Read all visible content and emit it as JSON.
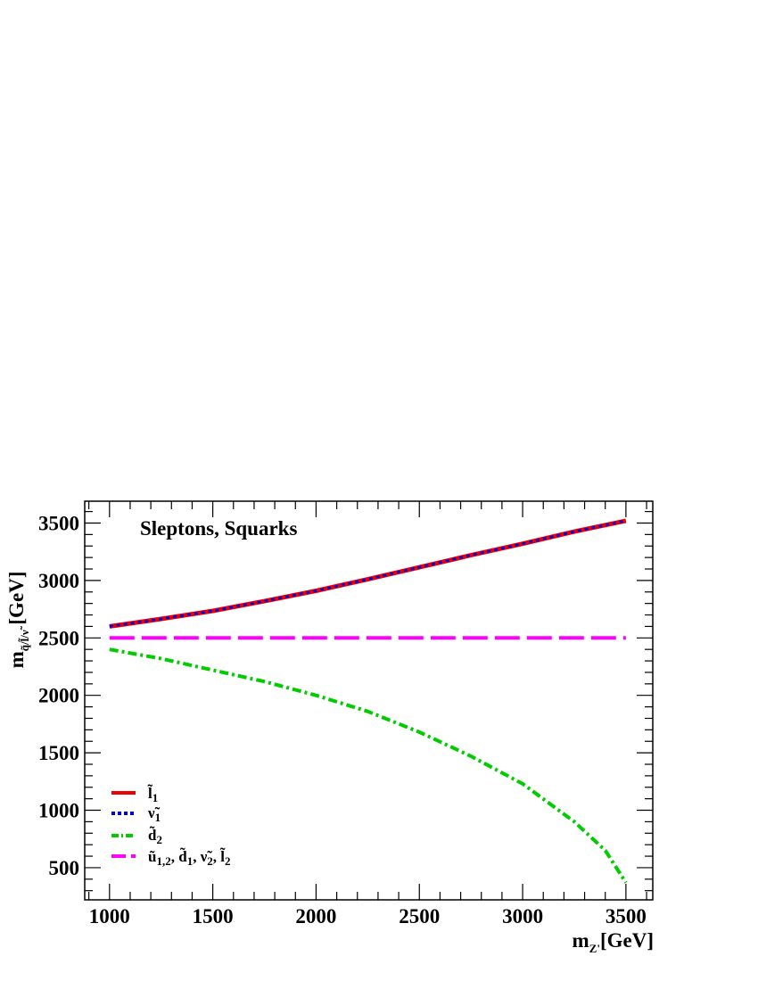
{
  "chart_data": {
    "type": "line",
    "title": "Sleptons, Squarks",
    "xlabel": "m_{Z'}[GeV]",
    "ylabel": "m_{q̃/l̃/ν̃} [GeV]",
    "xlim": [
      880,
      3630
    ],
    "ylim": [
      220,
      3690
    ],
    "xticks": [
      1000,
      1500,
      2000,
      2500,
      3000,
      3500
    ],
    "yticks": [
      500,
      1000,
      1500,
      2000,
      2500,
      3000,
      3500
    ],
    "legend_position": "bottom-left",
    "series": [
      {
        "name": "l̃1",
        "color": "#ee0000",
        "style": "solid",
        "x": [
          1000,
          1250,
          1500,
          1750,
          2000,
          2250,
          2500,
          2750,
          3000,
          3250,
          3500
        ],
        "y": [
          2600,
          2665,
          2735,
          2820,
          2910,
          3010,
          3115,
          3220,
          3320,
          3425,
          3520
        ]
      },
      {
        "name": "ν̃1",
        "color": "#0000dd",
        "style": "dotted",
        "x": [
          1000,
          1250,
          1500,
          1750,
          2000,
          2250,
          2500,
          2750,
          3000,
          3250,
          3500
        ],
        "y": [
          2600,
          2665,
          2735,
          2820,
          2910,
          3010,
          3115,
          3220,
          3320,
          3425,
          3520
        ]
      },
      {
        "name": "d̃2",
        "color": "#00cc00",
        "style": "dashdot",
        "x": [
          1000,
          1250,
          1500,
          1750,
          2000,
          2250,
          2500,
          2750,
          3000,
          3250,
          3400,
          3500
        ],
        "y": [
          2400,
          2320,
          2220,
          2120,
          2000,
          1860,
          1680,
          1470,
          1230,
          900,
          650,
          370
        ]
      },
      {
        "name": "ũ1,2, d̃1, ν̃2, l̃2",
        "color": "#ff00ff",
        "style": "dashed",
        "x": [
          1000,
          3500
        ],
        "y": [
          2500,
          2500
        ]
      }
    ]
  }
}
